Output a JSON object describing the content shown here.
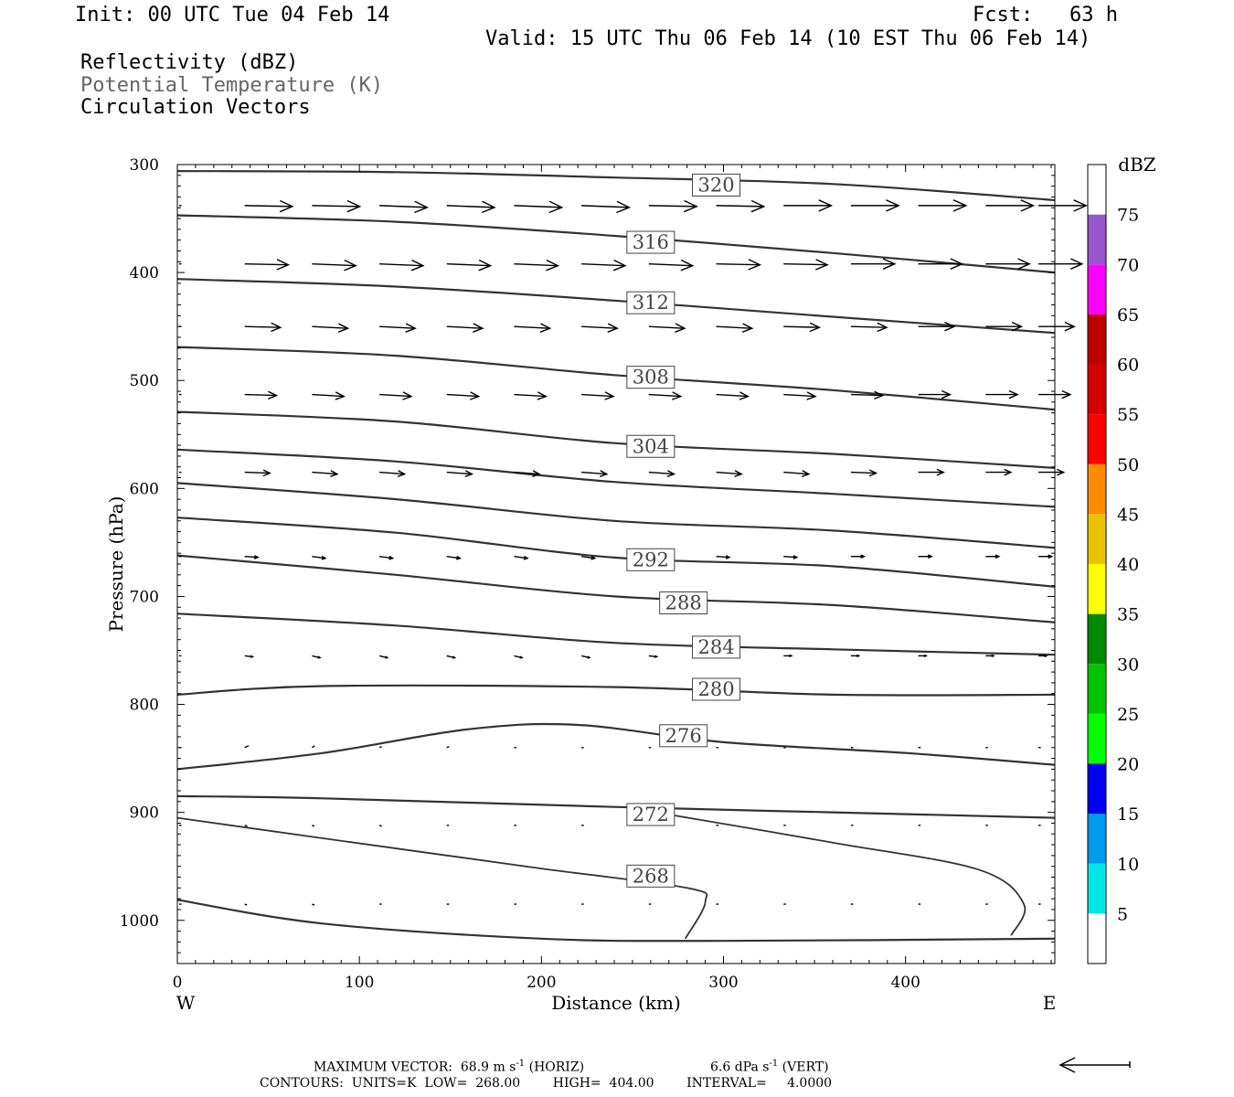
{
  "header": {
    "init": "Init: 00 UTC Tue 04 Feb 14",
    "fcst": "Fcst:   63 h",
    "valid": "Valid: 15 UTC Thu 06 Feb 14 (10 EST Thu 06 Feb 14)",
    "fields": [
      "Reflectivity (dBZ)",
      "Potential Temperature (K)",
      "Circulation Vectors"
    ]
  },
  "chart_data": {
    "type": "cross-section contour",
    "xlabel": "Distance (km)",
    "ylabel": "Pressure (hPa)",
    "xlim": [
      0,
      482
    ],
    "ylim": [
      1040,
      300
    ],
    "x_ticks": [
      "0",
      "100",
      "200",
      "300",
      "400"
    ],
    "y_ticks": [
      "300",
      "400",
      "500",
      "600",
      "700",
      "800",
      "900",
      "1000"
    ],
    "x_left_label": "W",
    "x_right_label": "E",
    "colorbar": {
      "unit": "dBZ",
      "tick_labels": [
        "5",
        "10",
        "15",
        "20",
        "25",
        "30",
        "35",
        "40",
        "45",
        "50",
        "55",
        "60",
        "65",
        "70",
        "75"
      ],
      "colors": [
        "#ffffff",
        "#00e6e6",
        "#0099ee",
        "#0000f0",
        "#00ff00",
        "#00c400",
        "#008a00",
        "#ffff00",
        "#e8c400",
        "#ff8c00",
        "#ff0000",
        "#d40000",
        "#bc0000",
        "#ff00ff",
        "#9955cc",
        "#ffffff"
      ]
    },
    "contour_labels": [
      {
        "label": "320",
        "x": 296,
        "p": 319
      },
      {
        "label": "316",
        "x": 260,
        "p": 372
      },
      {
        "label": "312",
        "x": 260,
        "p": 428
      },
      {
        "label": "308",
        "x": 260,
        "p": 497
      },
      {
        "label": "304",
        "x": 260,
        "p": 561
      },
      {
        "label": "292",
        "x": 260,
        "p": 666
      },
      {
        "label": "288",
        "x": 278,
        "p": 706
      },
      {
        "label": "284",
        "x": 296,
        "p": 747
      },
      {
        "label": "280",
        "x": 296,
        "p": 786
      },
      {
        "label": "276",
        "x": 278,
        "p": 829
      },
      {
        "label": "272",
        "x": 260,
        "p": 902
      },
      {
        "label": "268",
        "x": 260,
        "p": 959
      }
    ],
    "isentropes": [
      [
        [
          0,
          306
        ],
        [
          120,
          307
        ],
        [
          240,
          312
        ],
        [
          360,
          318
        ],
        [
          482,
          333
        ]
      ],
      [
        [
          0,
          347
        ],
        [
          120,
          353
        ],
        [
          240,
          366
        ],
        [
          360,
          382
        ],
        [
          482,
          400
        ]
      ],
      [
        [
          0,
          406
        ],
        [
          120,
          413
        ],
        [
          240,
          426
        ],
        [
          360,
          441
        ],
        [
          482,
          456
        ]
      ],
      [
        [
          0,
          469
        ],
        [
          120,
          477
        ],
        [
          240,
          495
        ],
        [
          360,
          509
        ],
        [
          482,
          527
        ]
      ],
      [
        [
          0,
          529
        ],
        [
          120,
          538
        ],
        [
          240,
          558
        ],
        [
          360,
          568
        ],
        [
          482,
          581
        ]
      ],
      [
        [
          0,
          564
        ],
        [
          120,
          575
        ],
        [
          240,
          594
        ],
        [
          360,
          605
        ],
        [
          482,
          617
        ]
      ],
      [
        [
          0,
          595
        ],
        [
          120,
          610
        ],
        [
          240,
          630
        ],
        [
          360,
          639
        ],
        [
          482,
          655
        ]
      ],
      [
        [
          0,
          627
        ],
        [
          120,
          641
        ],
        [
          240,
          664
        ],
        [
          360,
          672
        ],
        [
          482,
          691
        ]
      ],
      [
        [
          0,
          662
        ],
        [
          120,
          680
        ],
        [
          240,
          700
        ],
        [
          360,
          708
        ],
        [
          482,
          724
        ]
      ],
      [
        [
          0,
          716
        ],
        [
          120,
          727
        ],
        [
          240,
          743
        ],
        [
          360,
          749
        ],
        [
          482,
          754
        ]
      ],
      [
        [
          0,
          791
        ],
        [
          80,
          783
        ],
        [
          240,
          784
        ],
        [
          360,
          791
        ],
        [
          482,
          791
        ]
      ],
      [
        [
          0,
          860
        ],
        [
          80,
          845
        ],
        [
          160,
          823
        ],
        [
          220,
          819
        ],
        [
          300,
          835
        ],
        [
          400,
          845
        ],
        [
          482,
          856
        ]
      ],
      [
        [
          0,
          885
        ],
        [
          80,
          887
        ],
        [
          240,
          895
        ],
        [
          360,
          900
        ],
        [
          482,
          905
        ]
      ],
      [
        [
          0,
          981
        ],
        [
          80,
          1003
        ],
        [
          200,
          1017
        ],
        [
          300,
          1019
        ],
        [
          482,
          1017
        ]
      ]
    ],
    "contour_268": [
      [
        0,
        905
      ],
      [
        80,
        924
      ],
      [
        200,
        952
      ],
      [
        280,
        970
      ],
      [
        290,
        983
      ],
      [
        279,
        1017
      ]
    ],
    "contour_272_closed": [
      [
        270,
        902
      ],
      [
        360,
        928
      ],
      [
        440,
        953
      ],
      [
        465,
        985
      ],
      [
        458,
        1014
      ]
    ],
    "vectors": {
      "cols": [
        0,
        37,
        74,
        111,
        148,
        185,
        222,
        259,
        296,
        333,
        370,
        407,
        444,
        473
      ],
      "rows": [
        {
          "p": 338,
          "u": [
            0,
            36,
            36,
            36,
            36,
            36,
            36,
            36,
            36,
            36,
            36,
            36,
            36,
            36
          ],
          "w": [
            0,
            1,
            1,
            2,
            2,
            2,
            2,
            1,
            1,
            0,
            0,
            0,
            0,
            0
          ]
        },
        {
          "p": 392,
          "u": [
            0,
            33,
            33,
            33,
            33,
            33,
            33,
            33,
            33,
            33,
            33,
            33,
            33,
            33
          ],
          "w": [
            0,
            1,
            2,
            2,
            2,
            2,
            2,
            2,
            1,
            1,
            0,
            0,
            0,
            0
          ]
        },
        {
          "p": 450,
          "u": [
            0,
            27,
            27,
            27,
            27,
            27,
            27,
            27,
            27,
            27,
            27,
            27,
            27,
            27
          ],
          "w": [
            0,
            1,
            2,
            2,
            2,
            2,
            2,
            2,
            2,
            1,
            1,
            0,
            0,
            0
          ]
        },
        {
          "p": 513,
          "u": [
            0,
            24,
            24,
            24,
            24,
            24,
            24,
            24,
            24,
            24,
            24,
            24,
            24,
            24
          ],
          "w": [
            0,
            1,
            2,
            2,
            2,
            2,
            2,
            2,
            2,
            2,
            1,
            0,
            0,
            0
          ]
        },
        {
          "p": 585,
          "u": [
            0,
            19,
            19,
            19,
            19,
            19,
            19,
            19,
            19,
            19,
            19,
            19,
            19,
            19
          ],
          "w": [
            0,
            1,
            2,
            2,
            2,
            2,
            2,
            2,
            2,
            2,
            1,
            0,
            0,
            0
          ]
        },
        {
          "p": 663,
          "u": [
            0,
            10,
            10,
            10,
            10,
            10,
            10,
            10,
            10,
            10,
            10,
            10,
            10,
            10
          ],
          "w": [
            0,
            1,
            2,
            2,
            2,
            2,
            2,
            1,
            1,
            1,
            0,
            0,
            0,
            0
          ]
        },
        {
          "p": 755,
          "u": [
            0,
            6,
            6,
            6,
            6,
            6,
            6,
            6,
            6,
            6,
            6,
            6,
            6,
            6
          ],
          "w": [
            0,
            1,
            2,
            2,
            2,
            2,
            2,
            1,
            1,
            0,
            0,
            0,
            0,
            0
          ]
        },
        {
          "p": 840,
          "u": [
            0,
            3,
            2,
            1,
            1,
            1,
            1,
            1,
            1,
            1,
            1,
            1,
            1,
            1
          ],
          "w": [
            0,
            -2,
            -2,
            -1,
            -1,
            0,
            0,
            0,
            0,
            0,
            0,
            0,
            0,
            0
          ]
        },
        {
          "p": 912,
          "u": [
            0,
            2,
            1,
            1,
            1,
            1,
            1,
            1,
            1,
            1,
            1,
            1,
            1,
            1
          ],
          "w": [
            0,
            1,
            1,
            1,
            0,
            0,
            0,
            0,
            0,
            0,
            0,
            0,
            0,
            0
          ]
        },
        {
          "p": 985,
          "u": [
            0,
            1,
            1,
            1,
            1,
            1,
            1,
            1,
            1,
            1,
            1,
            1,
            1,
            1
          ],
          "w": [
            0,
            1,
            1,
            0,
            0,
            0,
            0,
            0,
            0,
            0,
            0,
            0,
            0,
            0
          ]
        }
      ]
    }
  },
  "footer": {
    "max_vector": "MAXIMUM VECTOR:  68.9 m s",
    "max_vector_sup": "-1",
    "horiz": " (HORIZ)",
    "vert_val": "6.6 dPa s",
    "vert_sup": "-1",
    "vert": " (VERT)",
    "contours": "CONTOURS:  UNITS=K  LOW=  268.00        HIGH=  404.00        INTERVAL=     4.0000"
  }
}
